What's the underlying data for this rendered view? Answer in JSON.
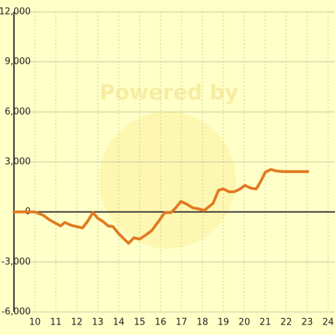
{
  "chart_data": {
    "type": "line",
    "watermark": "Powered by",
    "x": [
      9,
      10,
      10.4,
      10.73,
      11.23,
      11.43,
      11.73,
      12.27,
      12.5,
      12.77,
      13,
      13.27,
      13.5,
      13.73,
      14,
      14.23,
      14.47,
      14.73,
      15,
      15.3,
      15.57,
      15.87,
      16.2,
      16.5,
      16.73,
      16.97,
      17.2,
      17.53,
      17.87,
      18.07,
      18.5,
      18.77,
      19,
      19.27,
      19.53,
      19.8,
      20.03,
      20.33,
      20.57,
      20.77,
      21,
      21.27,
      21.5,
      21.83,
      22.27,
      23.03
    ],
    "series": [
      {
        "color": "#e07a20",
        "values": [
          0,
          0,
          -200,
          -500,
          -840,
          -630,
          -800,
          -960,
          -590,
          -40,
          -380,
          -590,
          -840,
          -880,
          -1300,
          -1590,
          -1880,
          -1550,
          -1630,
          -1380,
          -1130,
          -630,
          -40,
          -40,
          250,
          630,
          500,
          250,
          170,
          80,
          500,
          1300,
          1380,
          1210,
          1210,
          1380,
          1590,
          1420,
          1380,
          1800,
          2380,
          2550,
          2460,
          2420,
          2420,
          2420
        ]
      }
    ],
    "xlim": [
      9,
      24.33
    ],
    "ylim": [
      -6000,
      12000
    ],
    "xticks": [
      10,
      11,
      12,
      13,
      14,
      15,
      16,
      17,
      18,
      19,
      20,
      21,
      22,
      23,
      24
    ],
    "yticks": [
      {
        "value": -6000,
        "label": "-6,000"
      },
      {
        "value": -3000,
        "label": "-3,000"
      },
      0,
      {
        "value": 3000,
        "label": "3,000"
      },
      {
        "value": 6000,
        "label": "6,000"
      },
      {
        "value": 9000,
        "label": "9,000"
      },
      {
        "value": 12000,
        "label": "12,000"
      }
    ],
    "grid": true
  }
}
